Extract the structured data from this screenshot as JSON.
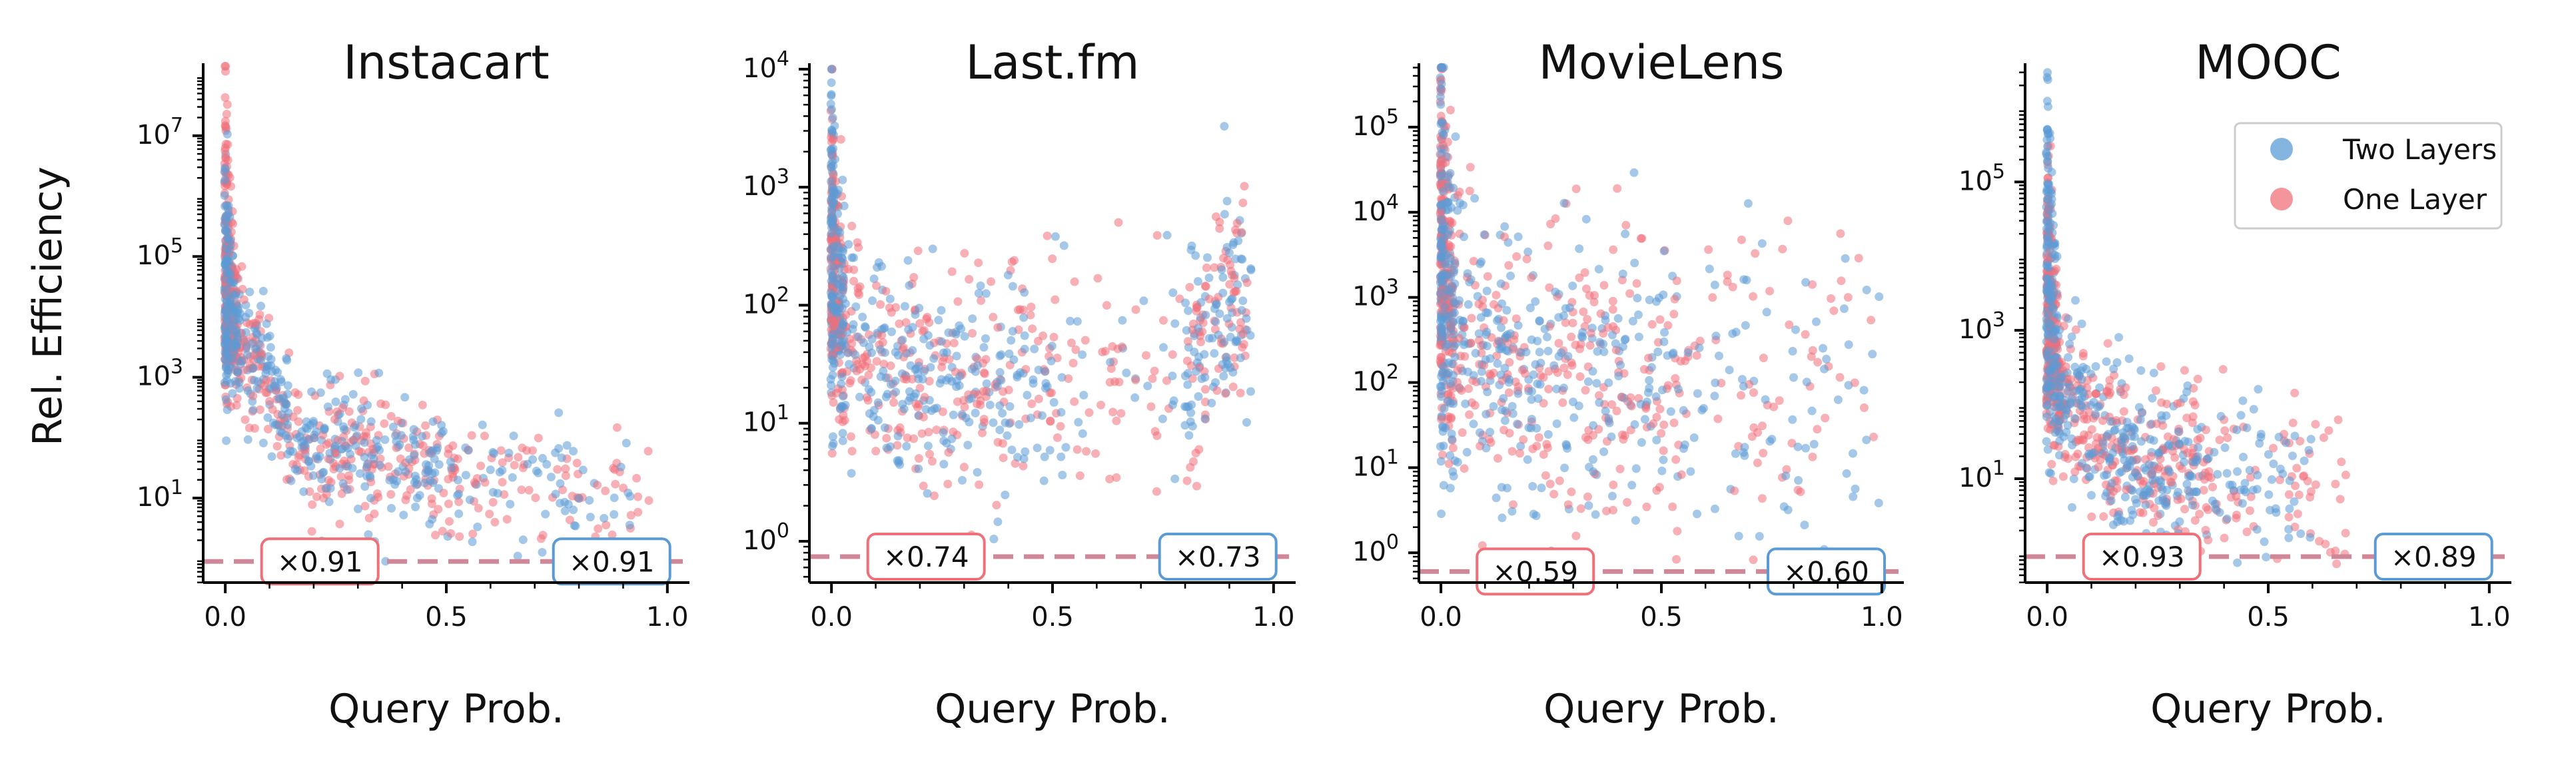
{
  "figure": {
    "ylabel": "Rel. Efficiency",
    "legend": {
      "placement": "top-right of last panel",
      "entries": [
        {
          "label": "Two Layers",
          "color": "#5b9bd5"
        },
        {
          "label": "One Layer",
          "color": "#f0707a"
        }
      ]
    },
    "colors": {
      "two_layers": "#5b9bd5",
      "one_layer": "#f0707a",
      "baseline": "#d08898"
    }
  },
  "chart_data": [
    {
      "type": "scatter",
      "title": "Instacart",
      "xlabel": "Query Prob.",
      "xlim": [
        -0.05,
        1.05
      ],
      "xticks": [
        0.0,
        0.5,
        1.0
      ],
      "xticklabels": [
        "0.0",
        "0.5",
        "1.0"
      ],
      "yscale": "log",
      "ylim_log10": [
        -0.4,
        8.2
      ],
      "yticks_log10": [
        1,
        3,
        5,
        7
      ],
      "baseline": 1,
      "annotations": [
        {
          "text": "×0.91",
          "series": "One Layer",
          "x": 0.24
        },
        {
          "text": "×0.91",
          "series": "Two Layers",
          "x": 0.84
        }
      ],
      "series": [
        {
          "name": "Two Layers",
          "shape": {
            "x_max": 0.92,
            "spike_max_log10": 6.2,
            "decay_log10": 3.5,
            "tail_log10": 1.9,
            "tail_slope": -1.2,
            "spread": 0.55
          }
        },
        {
          "name": "One Layer",
          "shape": {
            "x_max": 0.96,
            "spike_max_log10": 7.7,
            "decay_log10": 3.4,
            "tail_log10": 1.8,
            "tail_slope": -1.2,
            "spread": 0.55
          }
        }
      ]
    },
    {
      "type": "scatter",
      "title": "Last.fm",
      "xlabel": "Query Prob.",
      "xlim": [
        -0.05,
        1.05
      ],
      "xticks": [
        0.0,
        0.5,
        1.0
      ],
      "xticklabels": [
        "0.0",
        "0.5",
        "1.0"
      ],
      "yscale": "log",
      "ylim_log10": [
        -0.35,
        4.05
      ],
      "yticks_log10": [
        0,
        1,
        2,
        3,
        4
      ],
      "baseline": 1,
      "annotations": [
        {
          "text": "×0.74",
          "series": "One Layer",
          "x": 0.24
        },
        {
          "text": "×0.73",
          "series": "Two Layers",
          "x": 0.84
        }
      ],
      "series": [
        {
          "name": "Two Layers",
          "shape": {
            "x_max": 0.95,
            "spike_max_log10": 3.8,
            "decay_log10": 1.8,
            "tail_log10": 1.3,
            "tail_slope": 0.3,
            "spread": 0.45,
            "uptick": true
          }
        },
        {
          "name": "One Layer",
          "shape": {
            "x_max": 0.94,
            "spike_max_log10": 3.3,
            "decay_log10": 1.8,
            "tail_log10": 1.35,
            "tail_slope": 0.2,
            "spread": 0.45,
            "uptick": true
          }
        }
      ]
    },
    {
      "type": "scatter",
      "title": "MovieLens",
      "xlabel": "Query Prob.",
      "xlim": [
        -0.05,
        1.05
      ],
      "xticks": [
        0.0,
        0.5,
        1.0
      ],
      "xticklabels": [
        "0.0",
        "0.5",
        "1.0"
      ],
      "yscale": "log",
      "ylim_log10": [
        -0.35,
        5.75
      ],
      "yticks_log10": [
        0,
        1,
        2,
        3,
        4,
        5
      ],
      "baseline": 1,
      "annotations": [
        {
          "text": "×0.59",
          "series": "One Layer",
          "x": 0.24
        },
        {
          "text": "×0.60",
          "series": "Two Layers",
          "x": 0.84
        }
      ],
      "series": [
        {
          "name": "Two Layers",
          "shape": {
            "x_max": 1.0,
            "spike_max_log10": 5.6,
            "decay_log10": 2.6,
            "tail_log10": 2.1,
            "tail_slope": -0.2,
            "spread": 0.85
          }
        },
        {
          "name": "One Layer",
          "shape": {
            "x_max": 0.99,
            "spike_max_log10": 5.2,
            "decay_log10": 2.6,
            "tail_log10": 2.1,
            "tail_slope": -0.2,
            "spread": 0.85
          }
        }
      ]
    },
    {
      "type": "scatter",
      "title": "MOOC",
      "xlabel": "Query Prob.",
      "xlim": [
        -0.05,
        1.05
      ],
      "xticks": [
        0.0,
        0.5,
        1.0
      ],
      "xticklabels": [
        "0.0",
        "0.5",
        "1.0"
      ],
      "yscale": "log",
      "ylim_log10": [
        -0.4,
        6.6
      ],
      "yticks_log10": [
        1,
        3,
        5
      ],
      "baseline": 1,
      "annotations": [
        {
          "text": "×0.93",
          "series": "One Layer",
          "x": 0.24
        },
        {
          "text": "×0.89",
          "series": "Two Layers",
          "x": 0.84
        }
      ],
      "series": [
        {
          "name": "Two Layers",
          "shape": {
            "x_max": 0.6,
            "spike_max_log10": 6.4,
            "decay_log10": 2.2,
            "tail_log10": 1.2,
            "tail_slope": -0.8,
            "spread": 0.55
          }
        },
        {
          "name": "One Layer",
          "shape": {
            "x_max": 0.68,
            "spike_max_log10": 5.1,
            "decay_log10": 2.2,
            "tail_log10": 1.2,
            "tail_slope": -0.8,
            "spread": 0.55
          }
        }
      ]
    }
  ]
}
